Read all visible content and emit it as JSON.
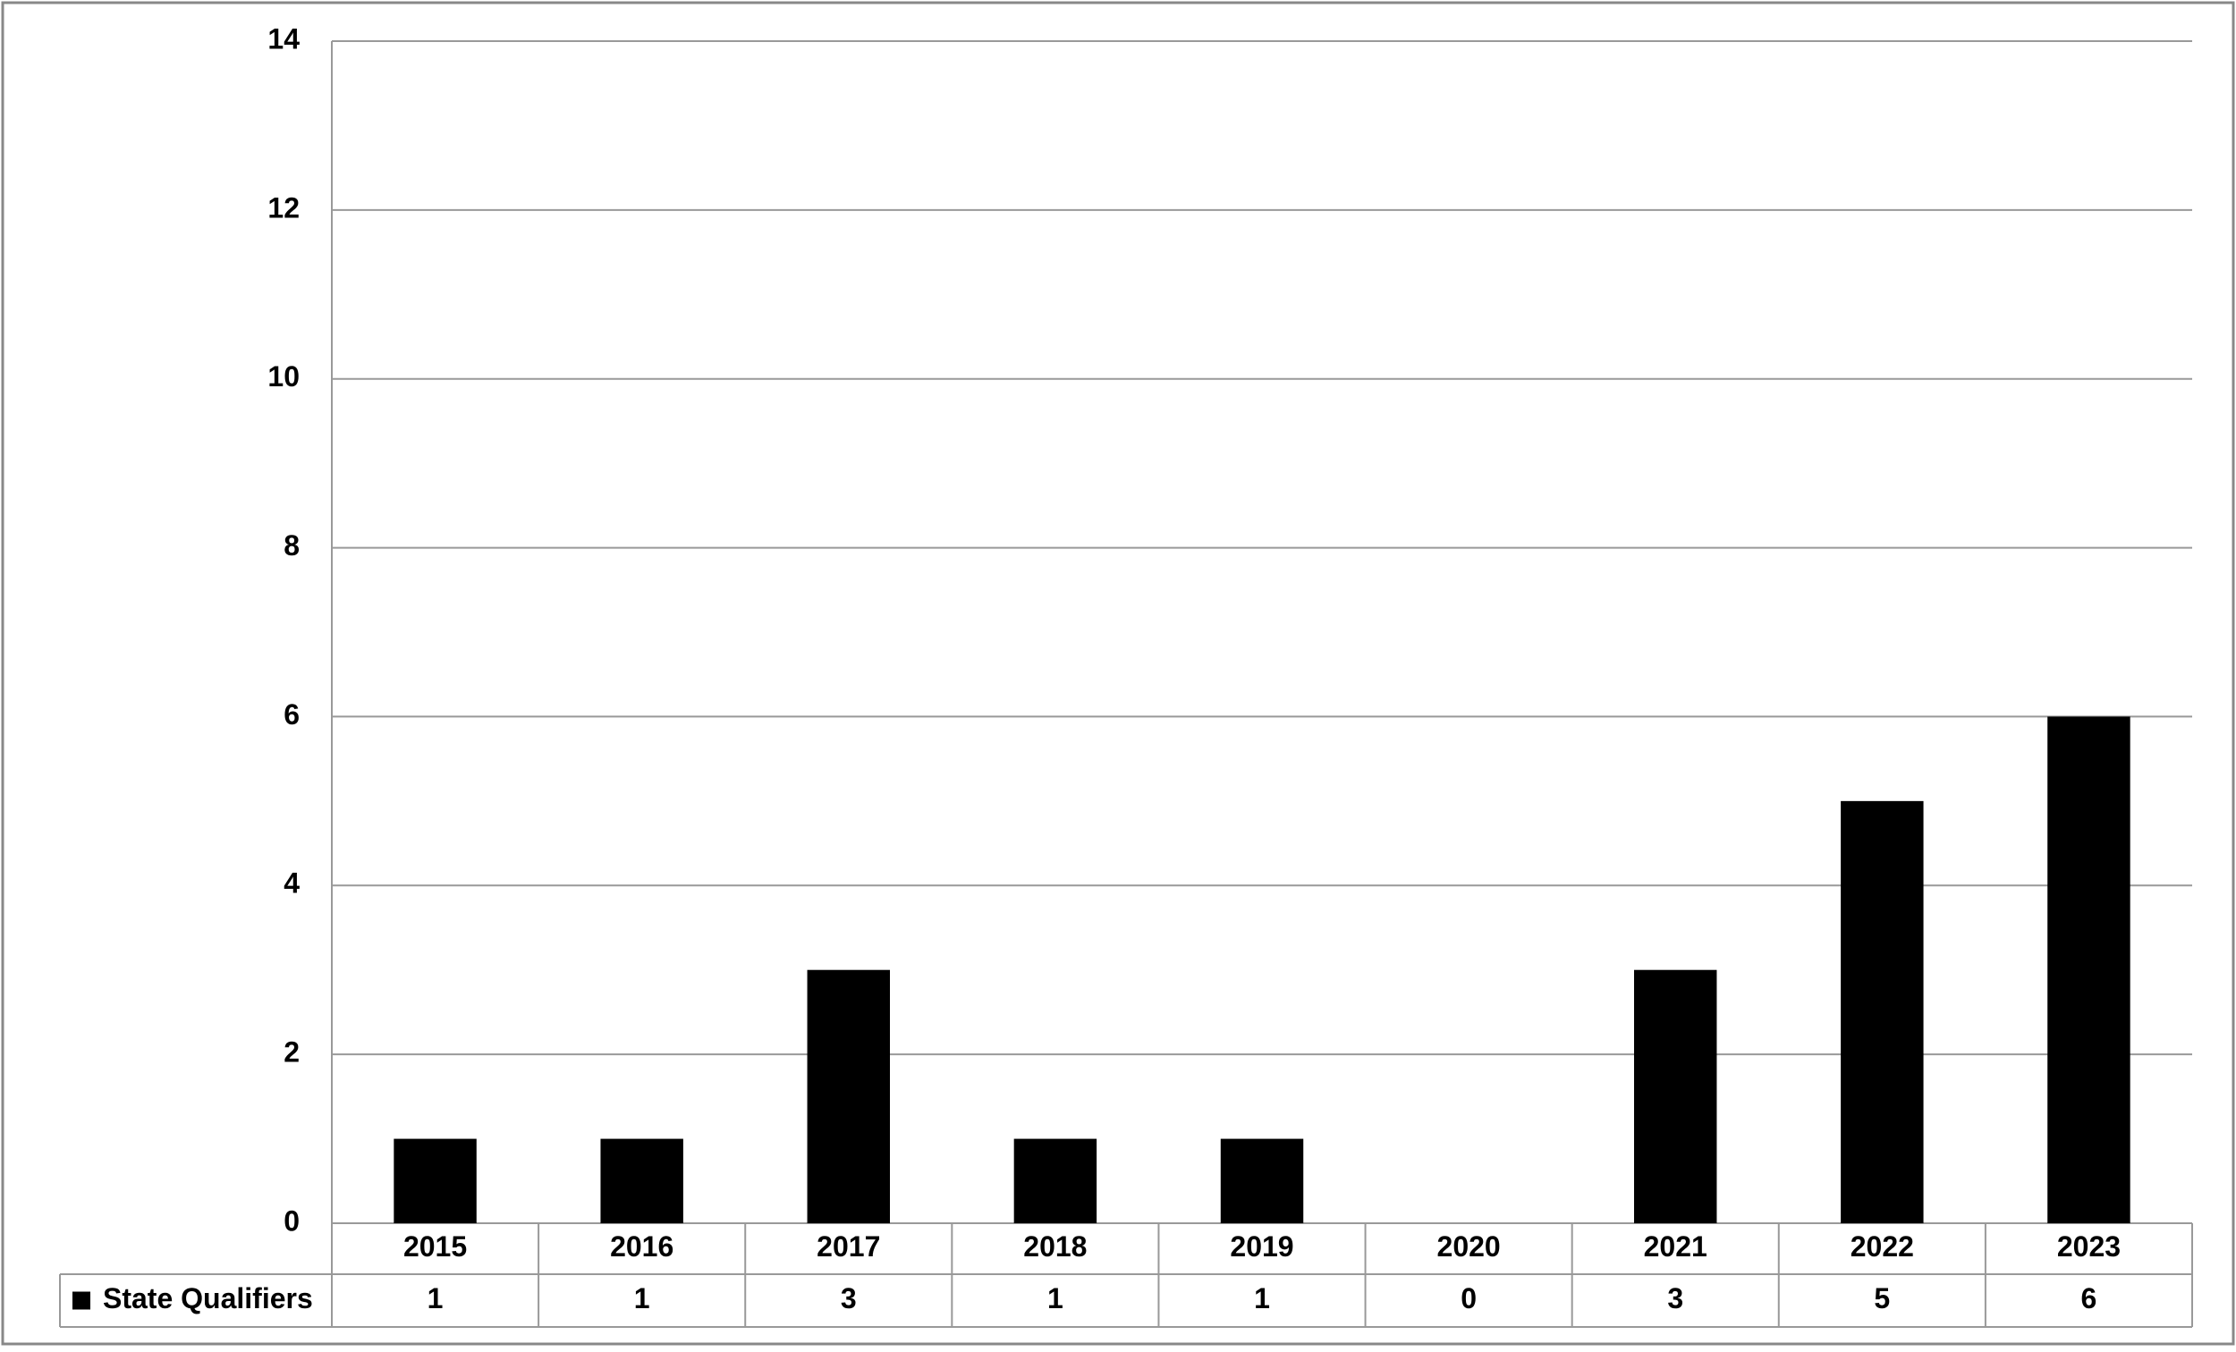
{
  "chart_data": {
    "type": "bar",
    "categories": [
      "2015",
      "2016",
      "2017",
      "2018",
      "2019",
      "2020",
      "2021",
      "2022",
      "2023"
    ],
    "series": [
      {
        "name": "State Qualifiers",
        "color": "#000000",
        "values": [
          1,
          1,
          3,
          1,
          1,
          0,
          3,
          5,
          6
        ]
      }
    ],
    "ylim": [
      0,
      14
    ],
    "yticks": [
      0,
      2,
      4,
      6,
      8,
      10,
      12,
      14
    ],
    "grid": true,
    "data_table": true
  }
}
